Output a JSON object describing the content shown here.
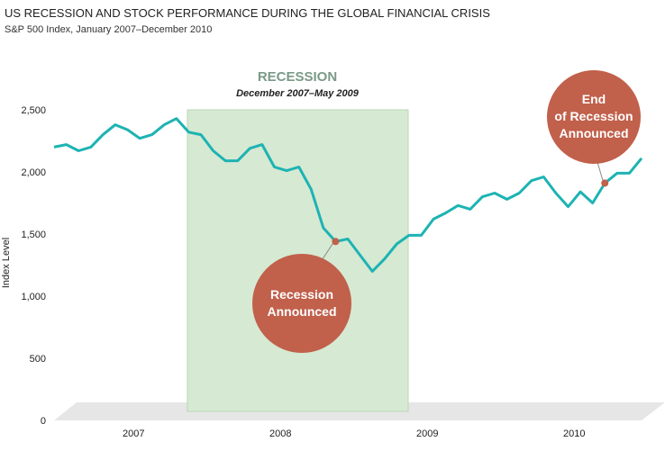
{
  "chart_data": {
    "type": "line",
    "title": "US RECESSION AND STOCK PERFORMANCE DURING THE GLOBAL FINANCIAL CRISIS",
    "subtitle": "S&P 500 Index, January 2007–December 2010",
    "y_label": "Index Level",
    "categories": [
      null,
      null,
      null,
      null,
      null,
      null,
      "2007",
      null,
      null,
      null,
      null,
      null,
      null,
      null,
      null,
      null,
      null,
      null,
      "2008",
      null,
      null,
      null,
      null,
      null,
      null,
      null,
      null,
      null,
      null,
      null,
      "2009",
      null,
      null,
      null,
      null,
      null,
      null,
      null,
      null,
      null,
      null,
      null,
      "2010",
      null,
      null,
      null,
      null,
      null,
      null
    ],
    "values": [
      2200,
      2220,
      2170,
      2200,
      2300,
      2380,
      2340,
      2270,
      2300,
      2380,
      2430,
      2320,
      2300,
      2170,
      2090,
      2090,
      2190,
      2220,
      2040,
      2010,
      2040,
      1860,
      1550,
      1440,
      1460,
      1330,
      1200,
      1300,
      1420,
      1490,
      1490,
      1620,
      1670,
      1730,
      1700,
      1800,
      1830,
      1780,
      1830,
      1930,
      1960,
      1830,
      1720,
      1840,
      1750,
      1910,
      1990,
      1990,
      2110
    ],
    "color": "#1db3b3",
    "ylim": [
      0,
      2500
    ],
    "yticks": [
      0,
      500,
      {
        "value": 1000,
        "label": "1,000"
      },
      {
        "value": 1500,
        "label": "1,500"
      },
      {
        "value": 2000,
        "label": "2,000"
      },
      {
        "value": 2500,
        "label": "2,500"
      }
    ],
    "shaded_region": {
      "label": "RECESSION",
      "period": "December 2007–May 2009"
    },
    "annotations": [
      {
        "lines": [
          "Recession",
          "Announced"
        ]
      },
      {
        "lines": [
          "End",
          "of Recession",
          "Announced"
        ]
      }
    ]
  }
}
